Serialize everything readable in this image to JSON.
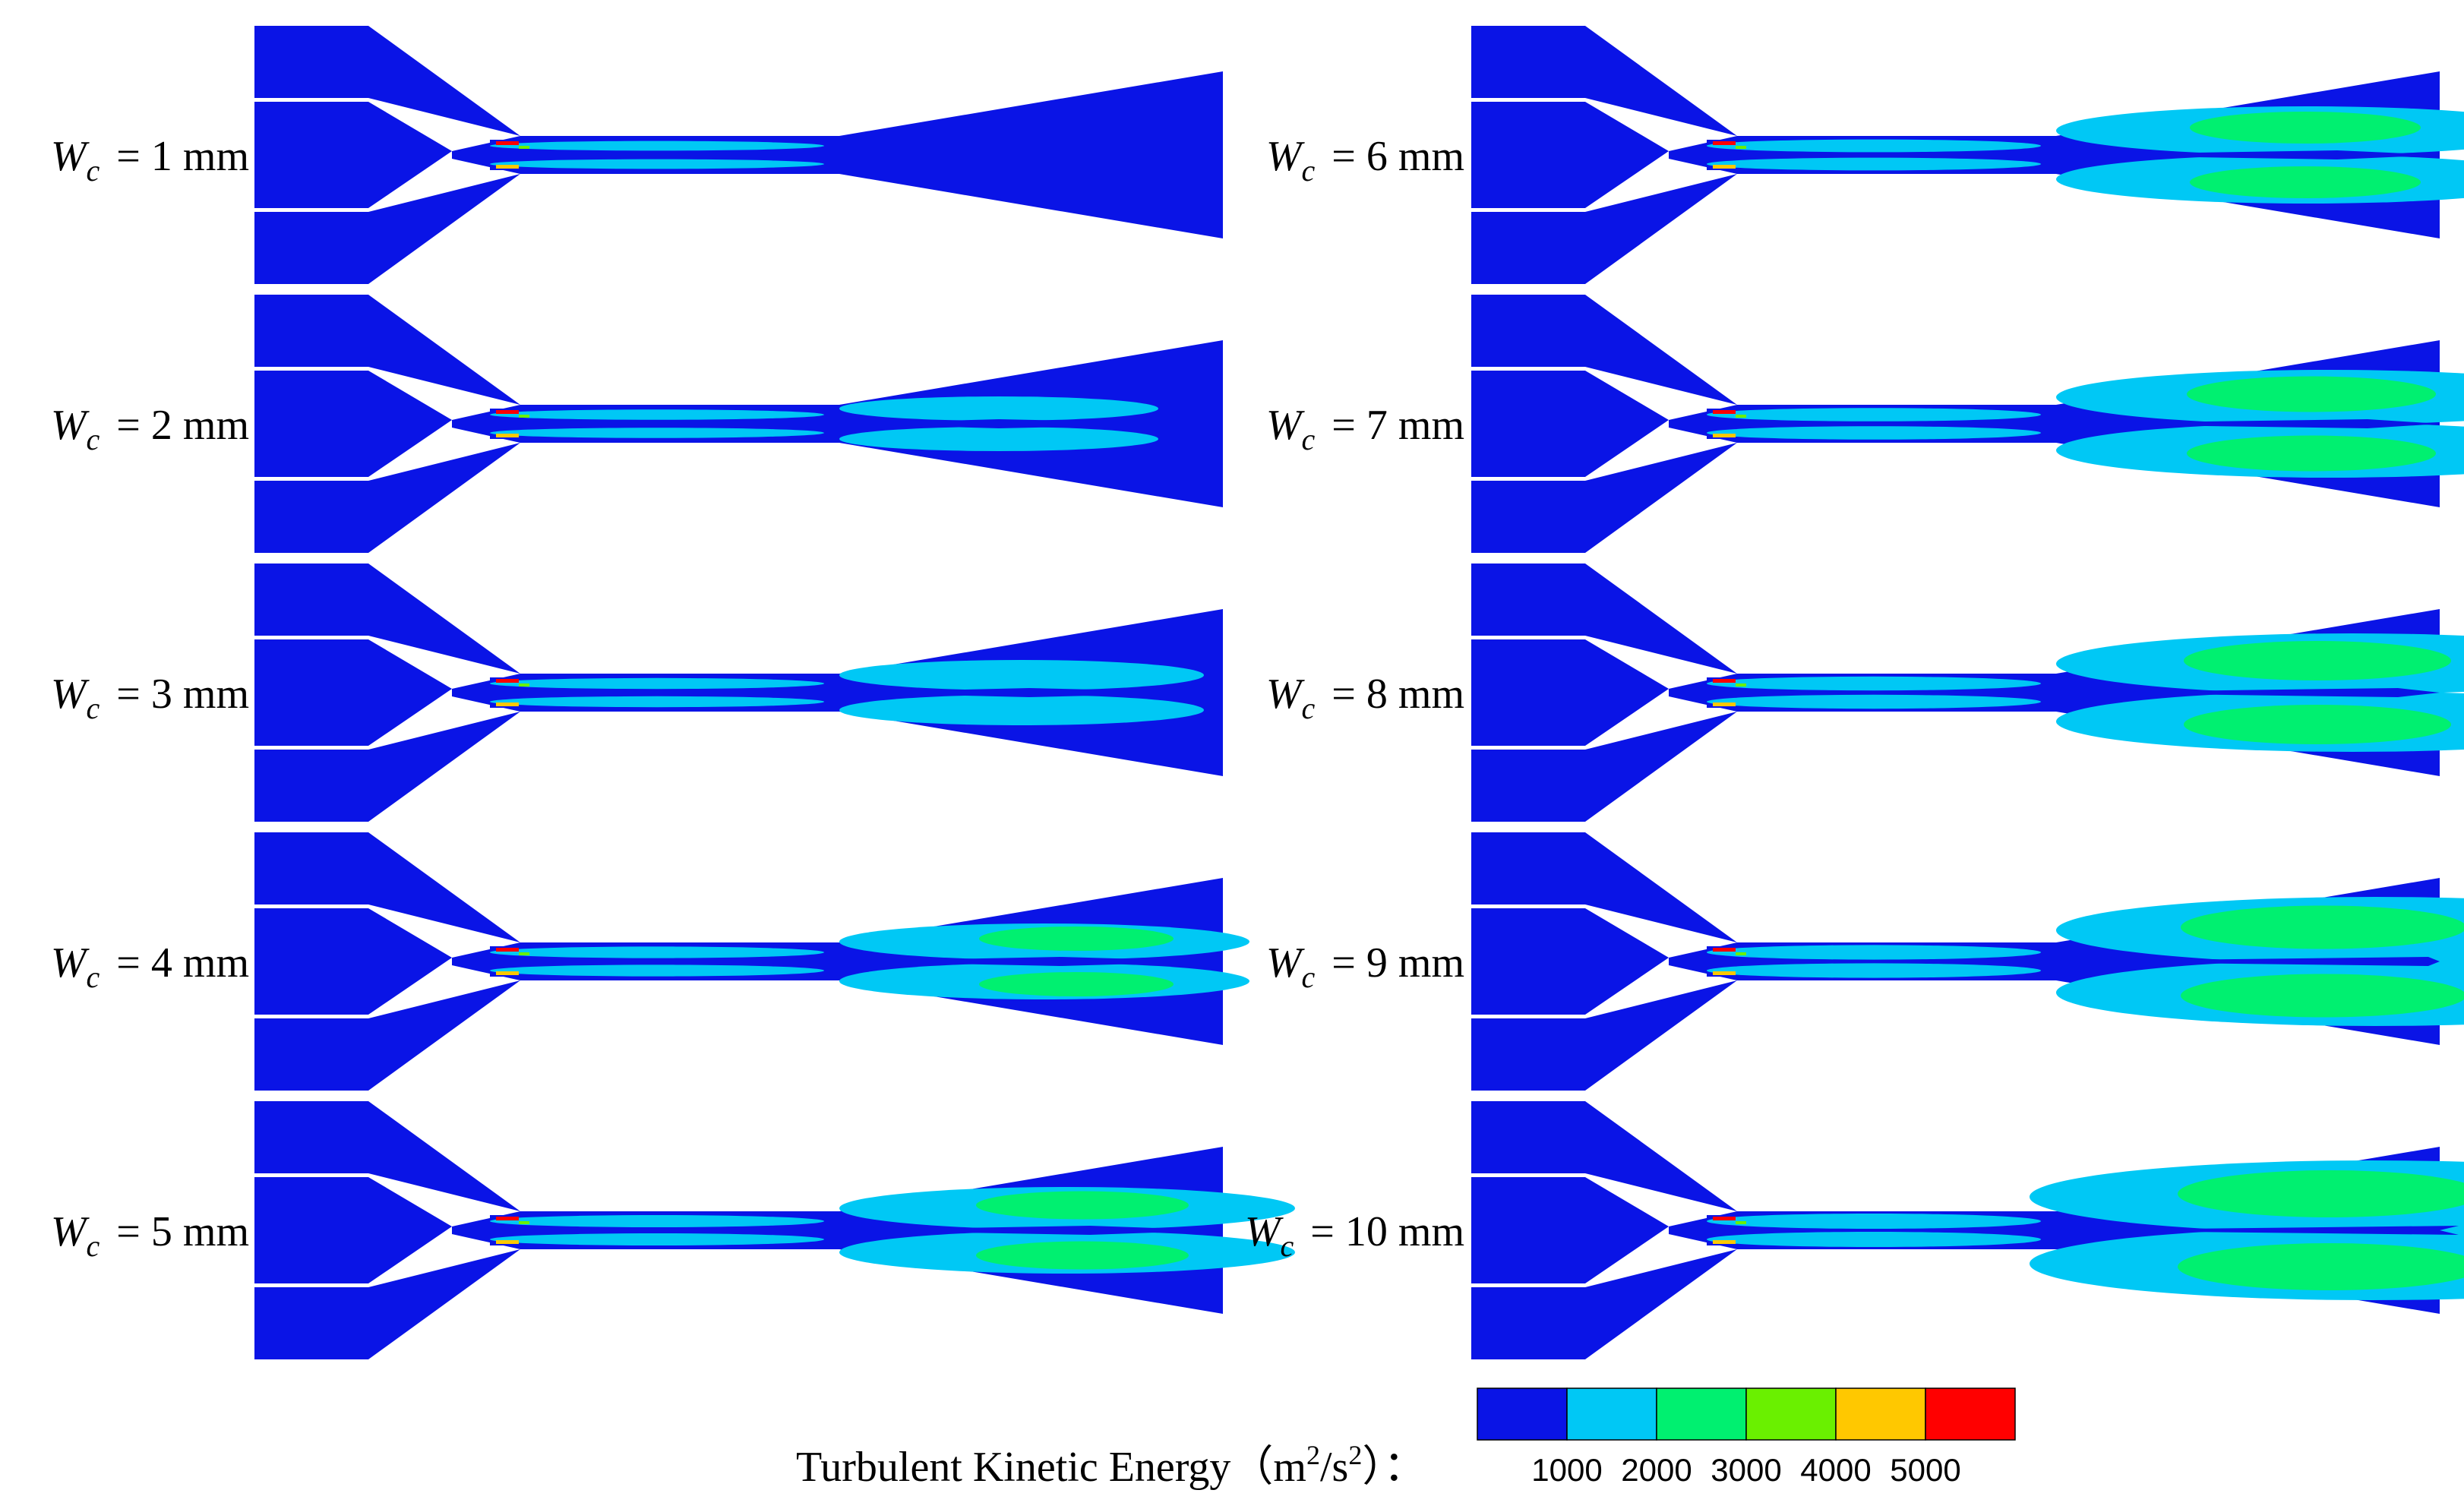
{
  "panels": [
    {
      "variable": "W",
      "subscript": "c",
      "equals": "= 1 mm",
      "level": 1
    },
    {
      "variable": "W",
      "subscript": "c",
      "equals": "= 2 mm",
      "level": 2
    },
    {
      "variable": "W",
      "subscript": "c",
      "equals": "= 3 mm",
      "level": 3
    },
    {
      "variable": "W",
      "subscript": "c",
      "equals": "= 4 mm",
      "level": 4
    },
    {
      "variable": "W",
      "subscript": "c",
      "equals": "= 5 mm",
      "level": 5
    },
    {
      "variable": "W",
      "subscript": "c",
      "equals": "= 6 mm",
      "level": 6
    },
    {
      "variable": "W",
      "subscript": "c",
      "equals": "= 7 mm",
      "level": 7
    },
    {
      "variable": "W",
      "subscript": "c",
      "equals": "= 8 mm",
      "level": 8
    },
    {
      "variable": "W",
      "subscript": "c",
      "equals": "= 9 mm",
      "level": 9
    },
    {
      "variable": "W",
      "subscript": "c",
      "equals": "= 10 mm",
      "level": 10
    }
  ],
  "colorbar": {
    "caption_prefix": "Turbulent Kinetic Energy（m",
    "caption_sup1": "2",
    "caption_mid": "/s",
    "caption_sup2": "2",
    "caption_suffix": "）：",
    "colors": [
      "#0a14e6",
      "#00c8f5",
      "#00f070",
      "#6af000",
      "#ffc800",
      "#ff0000"
    ],
    "ticks": [
      "1000",
      "2000",
      "3000",
      "4000",
      "5000"
    ]
  }
}
